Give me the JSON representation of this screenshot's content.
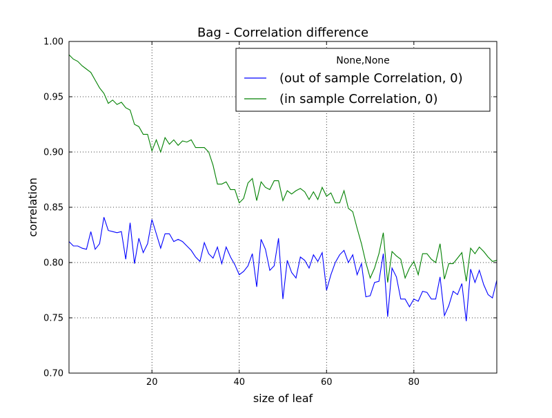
{
  "chart_data": {
    "type": "line",
    "title": "Bag - Correlation difference",
    "xlabel": "size of leaf",
    "ylabel": "correlation",
    "xlim": [
      1,
      99
    ],
    "ylim": [
      0.7,
      1.0
    ],
    "x_ticks": [
      20,
      40,
      60,
      80
    ],
    "y_ticks": [
      "0.70",
      "0.75",
      "0.80",
      "0.85",
      "0.90",
      "0.95",
      "1.00"
    ],
    "grid": true,
    "legend": {
      "title": "None,None",
      "placement": "top-right"
    },
    "x": [
      1,
      2,
      3,
      4,
      5,
      6,
      7,
      8,
      9,
      10,
      11,
      12,
      13,
      14,
      15,
      16,
      17,
      18,
      19,
      20,
      21,
      22,
      23,
      24,
      25,
      26,
      27,
      28,
      29,
      30,
      31,
      32,
      33,
      34,
      35,
      36,
      37,
      38,
      39,
      40,
      41,
      42,
      43,
      44,
      45,
      46,
      47,
      48,
      49,
      50,
      51,
      52,
      53,
      54,
      55,
      56,
      57,
      58,
      59,
      60,
      61,
      62,
      63,
      64,
      65,
      66,
      67,
      68,
      69,
      70,
      71,
      72,
      73,
      74,
      75,
      76,
      77,
      78,
      79,
      80,
      81,
      82,
      83,
      84,
      85,
      86,
      87,
      88,
      89,
      90,
      91,
      92,
      93,
      94,
      95,
      96,
      97,
      98,
      99
    ],
    "series": [
      {
        "name": "(out of sample Correlation, 0)",
        "color": "#0000ff",
        "values": [
          0.819,
          0.815,
          0.815,
          0.813,
          0.812,
          0.828,
          0.812,
          0.817,
          0.841,
          0.829,
          0.828,
          0.827,
          0.828,
          0.803,
          0.836,
          0.799,
          0.822,
          0.809,
          0.817,
          0.839,
          0.826,
          0.813,
          0.826,
          0.826,
          0.819,
          0.821,
          0.819,
          0.815,
          0.811,
          0.805,
          0.801,
          0.818,
          0.808,
          0.804,
          0.814,
          0.799,
          0.814,
          0.805,
          0.798,
          0.789,
          0.792,
          0.797,
          0.808,
          0.778,
          0.821,
          0.812,
          0.793,
          0.797,
          0.822,
          0.767,
          0.802,
          0.791,
          0.786,
          0.805,
          0.802,
          0.795,
          0.807,
          0.801,
          0.809,
          0.775,
          0.789,
          0.8,
          0.807,
          0.811,
          0.8,
          0.807,
          0.789,
          0.799,
          0.769,
          0.77,
          0.782,
          0.783,
          0.808,
          0.751,
          0.795,
          0.787,
          0.767,
          0.767,
          0.76,
          0.767,
          0.765,
          0.774,
          0.773,
          0.767,
          0.767,
          0.787,
          0.752,
          0.761,
          0.774,
          0.771,
          0.781,
          0.747,
          0.794,
          0.782,
          0.793,
          0.78,
          0.771,
          0.768,
          0.784
        ]
      },
      {
        "name": "(in sample Correlation, 0)",
        "color": "#008000",
        "values": [
          0.988,
          0.984,
          0.982,
          0.978,
          0.975,
          0.972,
          0.965,
          0.958,
          0.953,
          0.944,
          0.947,
          0.943,
          0.945,
          0.94,
          0.938,
          0.925,
          0.923,
          0.916,
          0.916,
          0.901,
          0.911,
          0.9,
          0.913,
          0.907,
          0.911,
          0.906,
          0.91,
          0.909,
          0.911,
          0.904,
          0.904,
          0.904,
          0.9,
          0.888,
          0.871,
          0.871,
          0.873,
          0.866,
          0.866,
          0.854,
          0.858,
          0.872,
          0.876,
          0.856,
          0.873,
          0.868,
          0.866,
          0.874,
          0.874,
          0.856,
          0.865,
          0.862,
          0.865,
          0.867,
          0.864,
          0.857,
          0.864,
          0.857,
          0.868,
          0.86,
          0.863,
          0.854,
          0.854,
          0.865,
          0.849,
          0.846,
          0.831,
          0.817,
          0.8,
          0.786,
          0.795,
          0.808,
          0.827,
          0.782,
          0.81,
          0.806,
          0.803,
          0.786,
          0.795,
          0.801,
          0.789,
          0.808,
          0.808,
          0.803,
          0.8,
          0.817,
          0.785,
          0.799,
          0.799,
          0.804,
          0.809,
          0.783,
          0.813,
          0.808,
          0.814,
          0.81,
          0.805,
          0.801,
          0.802
        ]
      }
    ]
  }
}
